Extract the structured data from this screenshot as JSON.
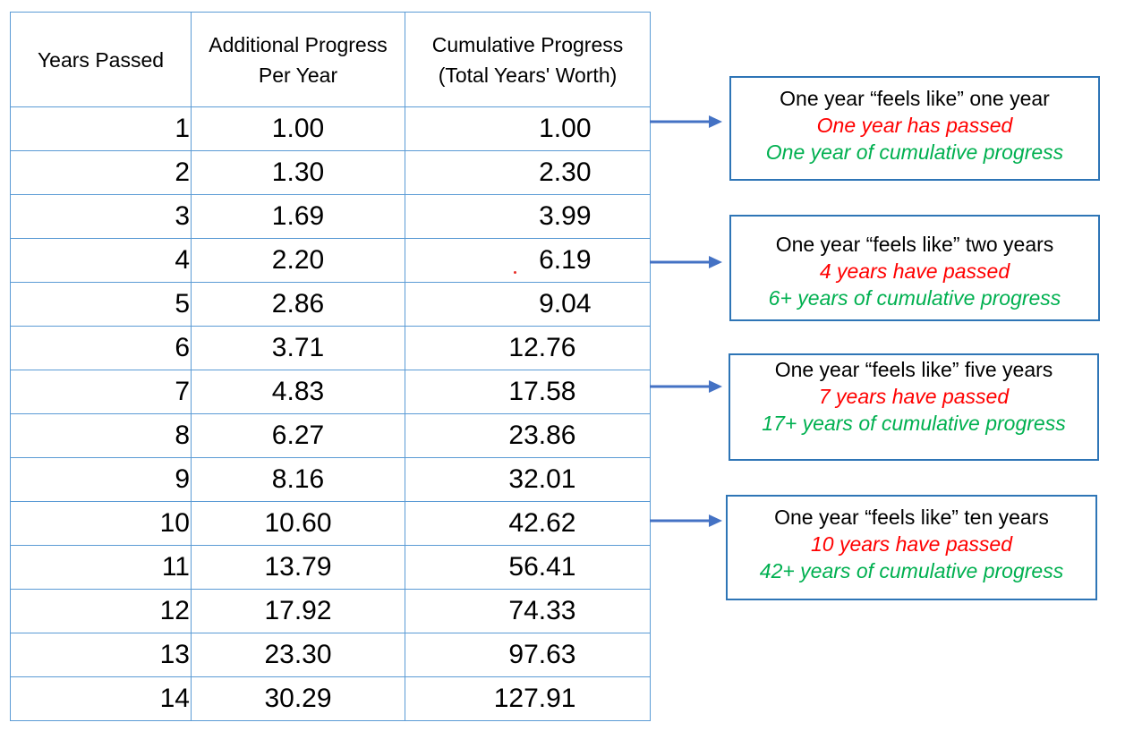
{
  "table": {
    "headers": [
      "Years Passed",
      "Additional Progress\nPer Year",
      "Cumulative Progress\n(Total Years' Worth)"
    ],
    "rows": [
      {
        "year": "1",
        "additional": "1.00",
        "cumulative": "1.00"
      },
      {
        "year": "2",
        "additional": "1.30",
        "cumulative": "2.30"
      },
      {
        "year": "3",
        "additional": "1.69",
        "cumulative": "3.99"
      },
      {
        "year": "4",
        "additional": "2.20",
        "cumulative": "6.19"
      },
      {
        "year": "5",
        "additional": "2.86",
        "cumulative": "9.04"
      },
      {
        "year": "6",
        "additional": "3.71",
        "cumulative": "12.76"
      },
      {
        "year": "7",
        "additional": "4.83",
        "cumulative": "17.58"
      },
      {
        "year": "8",
        "additional": "6.27",
        "cumulative": "23.86"
      },
      {
        "year": "9",
        "additional": "8.16",
        "cumulative": "32.01"
      },
      {
        "year": "10",
        "additional": "10.60",
        "cumulative": "42.62"
      },
      {
        "year": "11",
        "additional": "13.79",
        "cumulative": "56.41"
      },
      {
        "year": "12",
        "additional": "17.92",
        "cumulative": "74.33"
      },
      {
        "year": "13",
        "additional": "23.30",
        "cumulative": "97.63"
      },
      {
        "year": "14",
        "additional": "30.29",
        "cumulative": "127.91"
      }
    ],
    "border_color": "#5b9bd5"
  },
  "callouts": [
    {
      "feels_like": "One year “feels like” one year",
      "passed": "One year has passed",
      "cumulative": "One year of cumulative progress"
    },
    {
      "feels_like": "One year “feels like” two years",
      "passed": "4 years have passed",
      "cumulative": "6+ years of cumulative progress"
    },
    {
      "feels_like": "One year “feels like” five years",
      "passed": "7 years have passed",
      "cumulative": "17+ years of cumulative progress"
    },
    {
      "feels_like": "One year “feels like” ten years",
      "passed": "10 years have passed",
      "cumulative": "42+ years of cumulative progress"
    }
  ],
  "colors": {
    "callout_border": "#2e75b6",
    "arrow": "#4472c4",
    "red_text": "#ff0000",
    "green_text": "#00b050"
  },
  "icons": {
    "arrow": "arrow-right-icon"
  }
}
